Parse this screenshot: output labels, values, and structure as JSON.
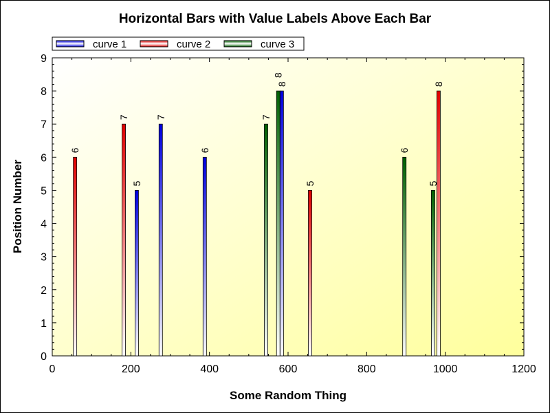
{
  "chart_data": {
    "type": "bar",
    "orientation": "vertical-bars-at-x",
    "title": "Horizontal Bars with Value Labels Above Each Bar",
    "xlabel": "Some Random Thing",
    "ylabel": "Position Number",
    "xlim": [
      0,
      1200
    ],
    "ylim": [
      0,
      9
    ],
    "xticks": [
      "0",
      "200",
      "400",
      "600",
      "800",
      "1000",
      "1200"
    ],
    "yticks": [
      "0",
      "1",
      "2",
      "3",
      "4",
      "5",
      "6",
      "7",
      "8",
      "9"
    ],
    "legend_placement": "top-left",
    "series": [
      {
        "name": "curve 1",
        "color": "#0000e0",
        "points": [
          [
            215,
            5
          ],
          [
            276,
            7
          ],
          [
            388,
            6
          ],
          [
            584,
            8
          ]
        ]
      },
      {
        "name": "curve 2",
        "color": "#e00000",
        "points": [
          [
            58,
            6
          ],
          [
            182,
            7
          ],
          [
            656,
            5
          ],
          [
            983,
            8
          ]
        ]
      },
      {
        "name": "curve 3",
        "color": "#006000",
        "points": [
          [
            544,
            7
          ],
          [
            575,
            8
          ],
          [
            896,
            6
          ],
          [
            969,
            5
          ]
        ]
      }
    ]
  }
}
